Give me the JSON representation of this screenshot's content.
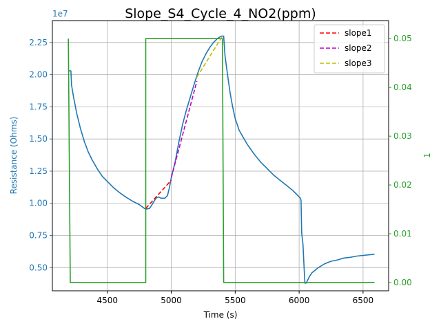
{
  "chart_data": {
    "type": "line",
    "title": "Slope_S4_Cycle_4_NO2(ppm)",
    "xlabel": "Time (s)",
    "ylabel_left": "Resistance (Ohms)",
    "ylabel_right": "1",
    "left_axis_multiplier": "1e7",
    "xlim": [
      4070,
      6700
    ],
    "ylim_left": [
      3200000,
      24200000
    ],
    "ylim_right": [
      -0.0017,
      0.0537
    ],
    "x_ticks": [
      4500,
      5000,
      5500,
      6000,
      6500
    ],
    "y_ticks_left": [
      0.5,
      0.75,
      1.0,
      1.25,
      1.5,
      1.75,
      2.0,
      2.25
    ],
    "y_ticks_right": [
      0.0,
      0.01,
      0.02,
      0.03,
      0.04,
      0.05
    ],
    "x_tick_labels": [
      "4500",
      "5000",
      "5500",
      "6000",
      "6500"
    ],
    "y_tick_labels_left": [
      "0.50",
      "0.75",
      "1.00",
      "1.25",
      "1.50",
      "1.75",
      "2.00",
      "2.25"
    ],
    "y_tick_labels_right": [
      "0.00",
      "0.01",
      "0.02",
      "0.03",
      "0.04",
      "0.05"
    ],
    "grid": true,
    "legend_position": "top-right",
    "colors": {
      "resistance": "#1f77b4",
      "concentration": "#2ca02c",
      "slope1": "#ff0000",
      "slope2": "#bf00bf",
      "slope3": "#bfbf00",
      "grid": "#b0b0b0"
    },
    "series": [
      {
        "axis": "left",
        "points": [
          [
            4195,
            20300000
          ],
          [
            4215,
            20300000
          ],
          [
            4220,
            19200000
          ],
          [
            4235,
            18300000
          ],
          [
            4260,
            17000000
          ],
          [
            4290,
            15800000
          ],
          [
            4320,
            14800000
          ],
          [
            4350,
            14000000
          ],
          [
            4380,
            13400000
          ],
          [
            4420,
            12700000
          ],
          [
            4460,
            12100000
          ],
          [
            4500,
            11700000
          ],
          [
            4550,
            11200000
          ],
          [
            4600,
            10800000
          ],
          [
            4650,
            10450000
          ],
          [
            4700,
            10150000
          ],
          [
            4750,
            9900000
          ],
          [
            4790,
            9600000
          ],
          [
            4800,
            9550000
          ],
          [
            4830,
            9600000
          ],
          [
            4850,
            9900000
          ],
          [
            4880,
            10400000
          ],
          [
            4900,
            10500000
          ],
          [
            4920,
            10400000
          ],
          [
            4950,
            10400000
          ],
          [
            4970,
            10600000
          ],
          [
            4985,
            11200000
          ],
          [
            5000,
            12000000
          ],
          [
            5030,
            13200000
          ],
          [
            5060,
            14800000
          ],
          [
            5090,
            16200000
          ],
          [
            5120,
            17300000
          ],
          [
            5150,
            18300000
          ],
          [
            5180,
            19300000
          ],
          [
            5210,
            20200000
          ],
          [
            5240,
            21000000
          ],
          [
            5270,
            21600000
          ],
          [
            5300,
            22100000
          ],
          [
            5330,
            22500000
          ],
          [
            5360,
            22800000
          ],
          [
            5390,
            23000000
          ],
          [
            5410,
            23000000
          ],
          [
            5420,
            21500000
          ],
          [
            5440,
            20000000
          ],
          [
            5460,
            18600000
          ],
          [
            5480,
            17500000
          ],
          [
            5500,
            16600000
          ],
          [
            5530,
            15700000
          ],
          [
            5570,
            15000000
          ],
          [
            5600,
            14500000
          ],
          [
            5650,
            13800000
          ],
          [
            5700,
            13200000
          ],
          [
            5750,
            12700000
          ],
          [
            5800,
            12200000
          ],
          [
            5850,
            11800000
          ],
          [
            5900,
            11400000
          ],
          [
            5950,
            11000000
          ],
          [
            5990,
            10600000
          ],
          [
            6010,
            10400000
          ],
          [
            6015,
            10200000
          ],
          [
            6020,
            7700000
          ],
          [
            6030,
            6800000
          ],
          [
            6040,
            4800000
          ],
          [
            6045,
            3800000
          ],
          [
            6055,
            3800000
          ],
          [
            6065,
            4000000
          ],
          [
            6080,
            4300000
          ],
          [
            6100,
            4600000
          ],
          [
            6150,
            5000000
          ],
          [
            6200,
            5300000
          ],
          [
            6250,
            5500000
          ],
          [
            6300,
            5600000
          ],
          [
            6350,
            5750000
          ],
          [
            6400,
            5800000
          ],
          [
            6450,
            5900000
          ],
          [
            6500,
            5950000
          ],
          [
            6550,
            6000000
          ],
          [
            6590,
            6050000
          ]
        ]
      },
      {
        "axis": "right",
        "points": [
          [
            4195,
            0.05
          ],
          [
            4210,
            0.0
          ],
          [
            4800,
            0.0
          ],
          [
            4800,
            0.05
          ],
          [
            5400,
            0.05
          ],
          [
            5410,
            0.0
          ],
          [
            6590,
            0.0
          ]
        ]
      },
      {
        "name": "slope1",
        "axis": "left",
        "dashed": true,
        "points": [
          [
            4800,
            9600000
          ],
          [
            5000,
            11800000
          ]
        ]
      },
      {
        "name": "slope2",
        "axis": "left",
        "dashed": true,
        "points": [
          [
            5000,
            12000000
          ],
          [
            5200,
            19500000
          ]
        ]
      },
      {
        "name": "slope3",
        "axis": "left",
        "dashed": true,
        "points": [
          [
            5200,
            19800000
          ],
          [
            5400,
            23000000
          ]
        ]
      }
    ]
  }
}
